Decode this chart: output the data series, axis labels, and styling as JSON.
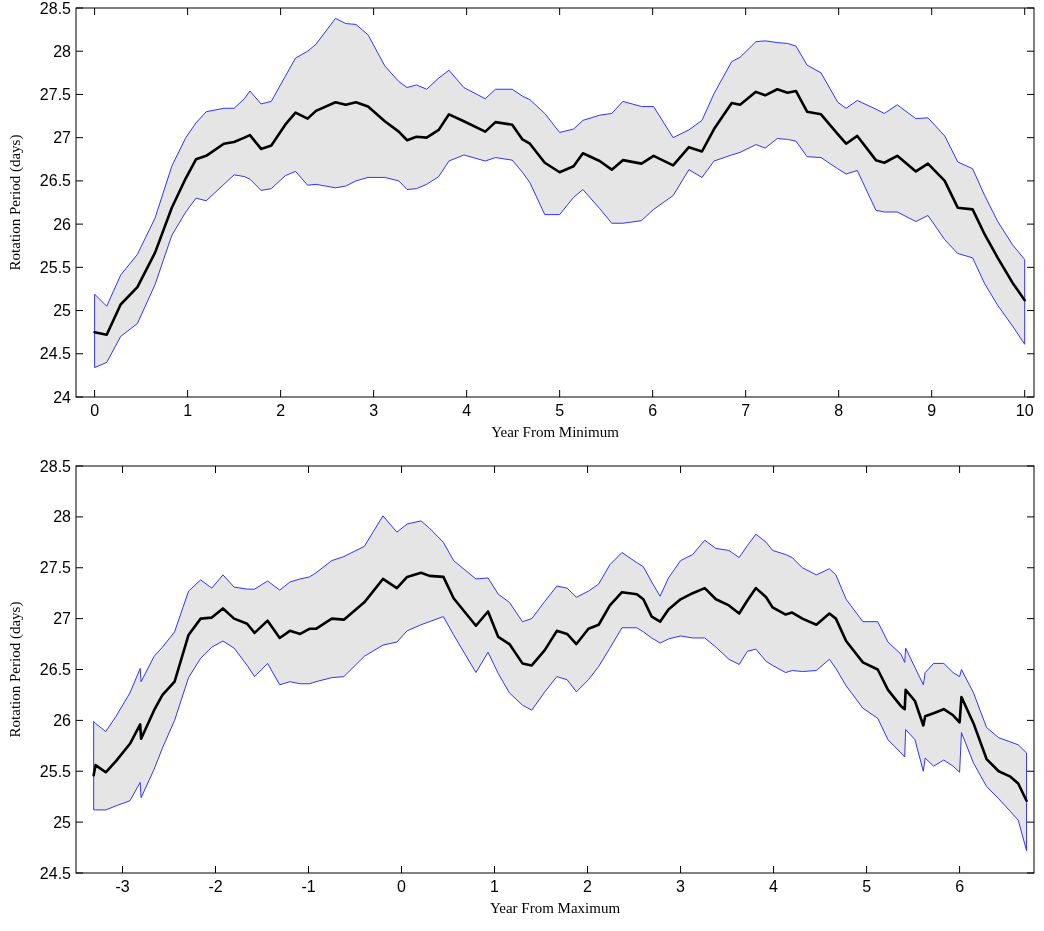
{
  "chart_data": [
    {
      "type": "line",
      "xlabel": "Year From Minimum",
      "ylabel": "Rotation Period (days)",
      "xlim": [
        -0.2,
        10.1
      ],
      "ylim": [
        24,
        28.5
      ],
      "xticks": [
        0,
        1,
        2,
        3,
        4,
        5,
        6,
        7,
        8,
        9,
        10
      ],
      "yticks": [
        24,
        24.5,
        25,
        25.5,
        26,
        26.5,
        27,
        27.5,
        28,
        28.5
      ],
      "series": [
        {
          "color": "#000000",
          "x": [
            0,
            0.13,
            0.28,
            0.46,
            0.65,
            0.83,
            0.98,
            1.09,
            1.2,
            1.39,
            1.5,
            1.61,
            1.67,
            1.79,
            1.9,
            2.05,
            2.16,
            2.29,
            2.38,
            2.59,
            2.7,
            2.81,
            2.94,
            3.12,
            3.27,
            3.36,
            3.46,
            3.57,
            3.7,
            3.81,
            3.97,
            4.2,
            4.31,
            4.49,
            4.6,
            4.68,
            4.84,
            5.0,
            5.15,
            5.25,
            5.43,
            5.56,
            5.68,
            5.88,
            6.01,
            6.22,
            6.39,
            6.53,
            6.66,
            6.85,
            6.94,
            7.11,
            7.21,
            7.34,
            7.45,
            7.54,
            7.66,
            7.81,
            7.99,
            8.08,
            8.2,
            8.4,
            8.49,
            8.63,
            8.83,
            8.96,
            9.14,
            9.28,
            9.44,
            9.57,
            9.71,
            9.87,
            10.0
          ],
          "values": [
            24.75,
            24.72,
            25.07,
            25.27,
            25.67,
            26.19,
            26.53,
            26.75,
            26.79,
            26.93,
            26.95,
            27.0,
            27.03,
            26.87,
            26.91,
            27.15,
            27.29,
            27.22,
            27.31,
            27.41,
            27.38,
            27.41,
            27.36,
            27.19,
            27.07,
            26.97,
            27.01,
            27.0,
            27.09,
            27.27,
            27.19,
            27.07,
            27.18,
            27.15,
            26.98,
            26.93,
            26.71,
            26.6,
            26.67,
            26.82,
            26.73,
            26.63,
            26.74,
            26.7,
            26.79,
            26.68,
            26.89,
            26.84,
            27.1,
            27.4,
            27.38,
            27.53,
            27.49,
            27.56,
            27.52,
            27.54,
            27.3,
            27.27,
            27.04,
            26.93,
            27.02,
            26.74,
            26.71,
            26.79,
            26.61,
            26.7,
            26.5,
            26.19,
            26.17,
            25.88,
            25.61,
            25.32,
            25.12
          ],
          "upper": [
            25.19,
            25.05,
            25.41,
            25.65,
            26.07,
            26.67,
            27.0,
            27.17,
            27.3,
            27.34,
            27.34,
            27.45,
            27.54,
            27.39,
            27.42,
            27.71,
            27.92,
            28.0,
            28.08,
            28.38,
            28.32,
            28.31,
            28.19,
            27.83,
            27.65,
            27.58,
            27.61,
            27.56,
            27.69,
            27.78,
            27.58,
            27.45,
            27.56,
            27.56,
            27.48,
            27.44,
            27.28,
            27.06,
            27.1,
            27.2,
            27.26,
            27.28,
            27.42,
            27.36,
            27.36,
            27.0,
            27.09,
            27.2,
            27.51,
            27.88,
            27.93,
            28.11,
            28.12,
            28.1,
            28.09,
            28.06,
            27.84,
            27.75,
            27.41,
            27.34,
            27.43,
            27.33,
            27.28,
            27.38,
            27.22,
            27.23,
            27.02,
            26.72,
            26.64,
            26.33,
            26.03,
            25.76,
            25.59
          ],
          "lower": [
            24.34,
            24.4,
            24.7,
            24.85,
            25.3,
            25.87,
            26.14,
            26.3,
            26.27,
            26.46,
            26.57,
            26.55,
            26.52,
            26.39,
            26.41,
            26.56,
            26.61,
            26.45,
            26.46,
            26.42,
            26.44,
            26.5,
            26.54,
            26.54,
            26.5,
            26.4,
            26.41,
            26.46,
            26.55,
            26.73,
            26.8,
            26.73,
            26.77,
            26.74,
            26.6,
            26.48,
            26.11,
            26.11,
            26.31,
            26.4,
            26.18,
            26.01,
            26.01,
            26.04,
            26.17,
            26.33,
            26.63,
            26.54,
            26.73,
            26.8,
            26.83,
            26.92,
            26.88,
            26.99,
            26.98,
            26.96,
            26.78,
            26.77,
            26.64,
            26.58,
            26.62,
            26.16,
            26.14,
            26.14,
            26.03,
            26.1,
            25.82,
            25.66,
            25.61,
            25.31,
            25.06,
            24.82,
            24.61
          ]
        }
      ]
    },
    {
      "type": "line",
      "xlabel": "Year From Maximum",
      "ylabel": "Rotation Period (days)",
      "xlim": [
        -3.5,
        6.8
      ],
      "ylim": [
        24.5,
        28.5
      ],
      "xticks": [
        -3,
        -2,
        -1,
        0,
        1,
        2,
        3,
        4,
        5,
        6
      ],
      "yticks": [
        24.5,
        25,
        25.5,
        26,
        26.5,
        27,
        27.5,
        28,
        28.5
      ],
      "series": [
        {
          "color": "#000000",
          "x": [
            -3.31,
            -3.29,
            -3.18,
            -3.07,
            -2.92,
            -2.81,
            -2.8,
            -2.66,
            -2.57,
            -2.44,
            -2.29,
            -2.16,
            -2.04,
            -1.92,
            -1.8,
            -1.66,
            -1.58,
            -1.44,
            -1.31,
            -1.2,
            -1.09,
            -0.99,
            -0.92,
            -0.75,
            -0.62,
            -0.4,
            -0.2,
            -0.05,
            0.06,
            0.21,
            0.3,
            0.45,
            0.56,
            0.8,
            0.93,
            1.04,
            1.16,
            1.3,
            1.4,
            1.54,
            1.67,
            1.78,
            1.88,
            2.01,
            2.12,
            2.24,
            2.37,
            2.53,
            2.6,
            2.69,
            2.78,
            2.87,
            3.0,
            3.13,
            3.26,
            3.38,
            3.52,
            3.63,
            3.72,
            3.81,
            3.92,
            3.99,
            4.13,
            4.2,
            4.31,
            4.46,
            4.6,
            4.67,
            4.78,
            4.96,
            5.12,
            5.23,
            5.37,
            5.41,
            5.42,
            5.52,
            5.61,
            5.63,
            5.72,
            5.83,
            5.93,
            6.0,
            6.02,
            6.15,
            6.29,
            6.42,
            6.54,
            6.63,
            6.72
          ],
          "values": [
            25.46,
            25.56,
            25.49,
            25.6,
            25.77,
            25.96,
            25.82,
            26.1,
            26.25,
            26.38,
            26.84,
            27.0,
            27.01,
            27.1,
            27.0,
            26.95,
            26.86,
            26.98,
            26.81,
            26.88,
            26.85,
            26.9,
            26.9,
            27.0,
            26.99,
            27.16,
            27.39,
            27.3,
            27.41,
            27.45,
            27.42,
            27.41,
            27.2,
            26.93,
            27.07,
            26.82,
            26.75,
            26.56,
            26.54,
            26.69,
            26.88,
            26.85,
            26.75,
            26.9,
            26.94,
            27.13,
            27.26,
            27.24,
            27.19,
            27.02,
            26.97,
            27.09,
            27.19,
            27.25,
            27.3,
            27.19,
            27.13,
            27.05,
            27.18,
            27.3,
            27.21,
            27.11,
            27.04,
            27.06,
            27.0,
            26.94,
            27.05,
            27.0,
            26.78,
            26.57,
            26.5,
            26.3,
            26.14,
            26.11,
            26.3,
            26.19,
            25.95,
            26.04,
            26.07,
            26.11,
            26.05,
            25.98,
            26.23,
            25.97,
            25.62,
            25.5,
            25.45,
            25.38,
            25.21
          ],
          "upper": [
            25.99,
            25.97,
            25.89,
            26.04,
            26.27,
            26.51,
            26.38,
            26.63,
            26.72,
            26.87,
            27.27,
            27.38,
            27.3,
            27.43,
            27.31,
            27.29,
            27.29,
            27.37,
            27.28,
            27.36,
            27.39,
            27.41,
            27.45,
            27.57,
            27.61,
            27.71,
            28.01,
            27.85,
            27.93,
            27.96,
            27.89,
            27.75,
            27.57,
            27.39,
            27.4,
            27.24,
            27.16,
            26.97,
            27.0,
            27.17,
            27.32,
            27.3,
            27.21,
            27.27,
            27.34,
            27.53,
            27.65,
            27.55,
            27.51,
            27.36,
            27.22,
            27.4,
            27.57,
            27.63,
            27.77,
            27.69,
            27.67,
            27.6,
            27.72,
            27.83,
            27.75,
            27.67,
            27.63,
            27.6,
            27.5,
            27.43,
            27.49,
            27.43,
            27.19,
            26.97,
            26.97,
            26.77,
            26.65,
            26.57,
            26.71,
            26.52,
            26.35,
            26.47,
            26.56,
            26.56,
            26.47,
            26.43,
            26.5,
            26.27,
            25.93,
            25.83,
            25.79,
            25.76,
            25.68
          ],
          "lower": [
            25.12,
            25.12,
            25.12,
            25.16,
            25.21,
            25.39,
            25.24,
            25.52,
            25.73,
            26.0,
            26.42,
            26.61,
            26.72,
            26.78,
            26.71,
            26.54,
            26.43,
            26.56,
            26.35,
            26.38,
            26.36,
            26.36,
            26.38,
            26.42,
            26.43,
            26.63,
            26.74,
            26.77,
            26.88,
            26.94,
            26.97,
            27.02,
            26.84,
            26.47,
            26.67,
            26.46,
            26.27,
            26.15,
            26.1,
            26.28,
            26.43,
            26.4,
            26.28,
            26.4,
            26.53,
            26.71,
            26.91,
            26.91,
            26.87,
            26.81,
            26.76,
            26.8,
            26.83,
            26.81,
            26.81,
            26.72,
            26.6,
            26.55,
            26.68,
            26.7,
            26.58,
            26.54,
            26.47,
            26.49,
            26.48,
            26.49,
            26.6,
            26.51,
            26.34,
            26.12,
            26.02,
            25.81,
            25.68,
            25.64,
            25.91,
            25.81,
            25.5,
            25.63,
            25.55,
            25.61,
            25.55,
            25.49,
            25.88,
            25.58,
            25.35,
            25.23,
            25.11,
            25.02,
            24.72
          ]
        }
      ]
    }
  ]
}
